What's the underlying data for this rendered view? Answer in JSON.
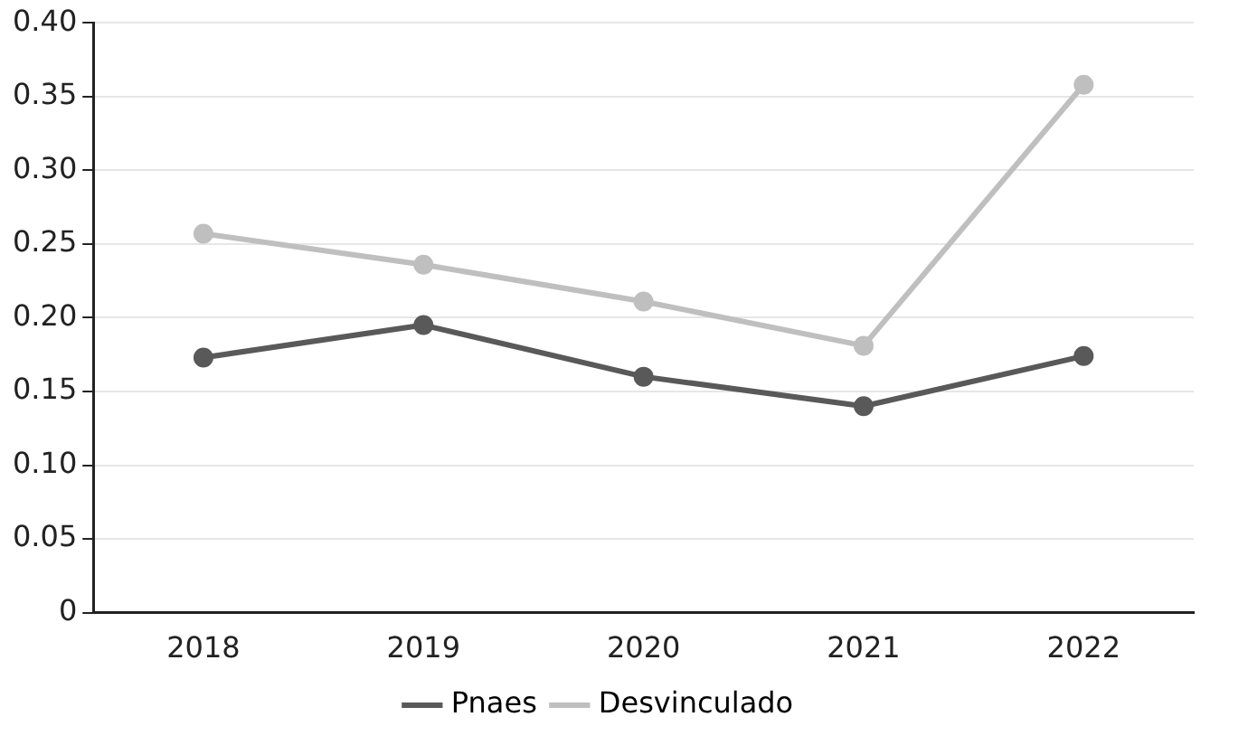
{
  "chart_data": {
    "type": "line",
    "categories": [
      "2018",
      "2019",
      "2020",
      "2021",
      "2022"
    ],
    "series": [
      {
        "name": "Pnaes",
        "color": "#595959",
        "values": [
          0.173,
          0.195,
          0.16,
          0.14,
          0.174
        ]
      },
      {
        "name": "Desvinculado",
        "color": "#bfbfbf",
        "values": [
          0.257,
          0.236,
          0.211,
          0.181,
          0.358
        ]
      }
    ],
    "ylim": [
      0,
      0.4
    ],
    "yticks": [
      0,
      {
        "value": 0.05,
        "label": "0.05"
      },
      {
        "value": 0.1,
        "label": "0.10"
      },
      {
        "value": 0.15,
        "label": "0.15"
      },
      {
        "value": 0.2,
        "label": "0.20"
      },
      {
        "value": 0.25,
        "label": "0.25"
      },
      {
        "value": 0.3,
        "label": "0.30"
      },
      {
        "value": 0.35,
        "label": "0.35"
      },
      {
        "value": 0.4,
        "label": "0.40"
      }
    ],
    "grid": "y",
    "legend": "bottom",
    "marker": "circle",
    "line_style": "solid"
  }
}
